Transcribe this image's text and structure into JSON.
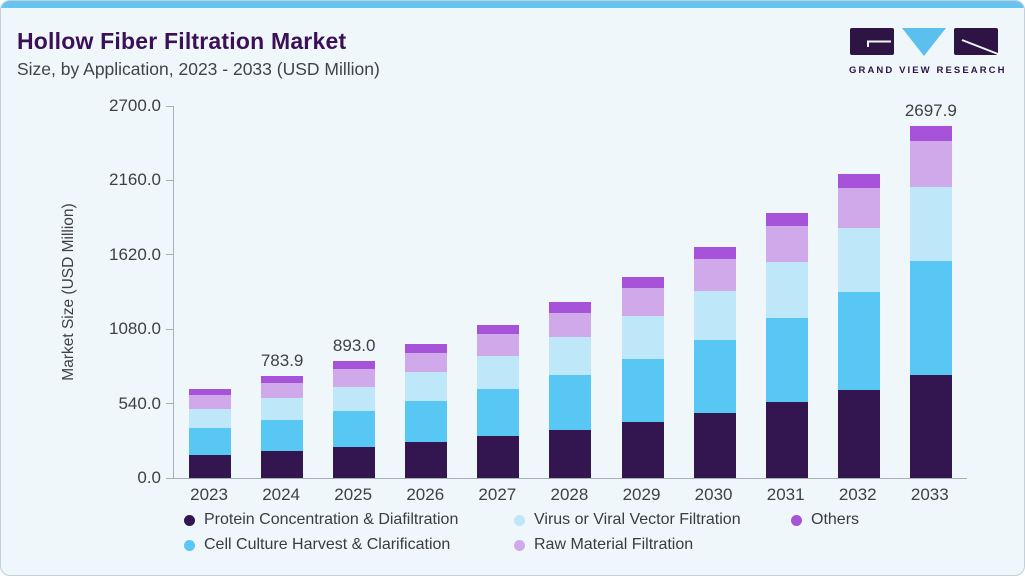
{
  "header": {
    "title": "Hollow Fiber Filtration Market",
    "subtitle": "Size, by Application, 2023 - 2033 (USD Million)"
  },
  "logo": {
    "brand": "GRAND VIEW RESEARCH",
    "mark_dark": "#2E1445",
    "mark_accent": "#5BC0EE"
  },
  "colors": {
    "card_background": "#F0F7FB",
    "top_accent_bar": "#66C4EF",
    "card_border": "#C3CFD9",
    "title_text": "#3A1056",
    "body_text": "#3E3F47",
    "axis_line": "#A6B0B8"
  },
  "chart_data": {
    "type": "bar",
    "stacked": true,
    "title": "Hollow Fiber Filtration Market Size, by Application, 2023 - 2033 (USD Million)",
    "xlabel": "",
    "ylabel": "Market Size (USD Million)",
    "ylim": [
      0,
      2700
    ],
    "yticks": [
      "0.0",
      "540.0",
      "1080.0",
      "1620.0",
      "2160.0",
      "2700.0"
    ],
    "grid": false,
    "legend_position": "bottom",
    "categories": [
      "2023",
      "2024",
      "2025",
      "2026",
      "2027",
      "2028",
      "2029",
      "2030",
      "2031",
      "2032",
      "2033"
    ],
    "series": [
      {
        "name": "Protein Concentration & Diafiltration",
        "color": "#331550",
        "values": [
          177.6,
          206.2,
          237.5,
          276.5,
          320.5,
          371.5,
          430.8,
          499.4,
          580.9,
          673.4,
          787.8
        ]
      },
      {
        "name": "Cell Culture Harvest & Clarification",
        "color": "#58C7F3",
        "values": [
          204.9,
          236.7,
          272.4,
          314.4,
          363.9,
          420.0,
          484.8,
          561.4,
          647.9,
          750.3,
          874.1
        ]
      },
      {
        "name": "Virus or Viral Vector Filtration",
        "color": "#BEE7FA",
        "values": [
          145.5,
          167.0,
          190.2,
          218.1,
          248.9,
          285.4,
          327.3,
          375.5,
          428.5,
          491.6,
          569.3
        ]
      },
      {
        "name": "Raw Material Filtration",
        "color": "#D0A9EA",
        "values": [
          104.5,
          118.4,
          132.2,
          149.5,
          169.1,
          191.1,
          214.6,
          242.6,
          274.2,
          307.6,
          350.7
        ]
      },
      {
        "name": "Others",
        "color": "#A653DA",
        "values": [
          50.5,
          55.7,
          60.7,
          65.5,
          71.6,
          78.1,
          86.5,
          92.1,
          99.5,
          107.2,
          116.0
        ]
      }
    ],
    "bar_total_labels": [
      "",
      "783.9",
      "893.0",
      "",
      "",
      "",
      "",
      "",
      "",
      "",
      "2697.9"
    ],
    "legend_order": [
      "Protein Concentration & Diafiltration",
      "Virus or Viral Vector Filtration",
      "Others",
      "Cell Culture Harvest & Clarification",
      "Raw Material Filtration"
    ]
  }
}
